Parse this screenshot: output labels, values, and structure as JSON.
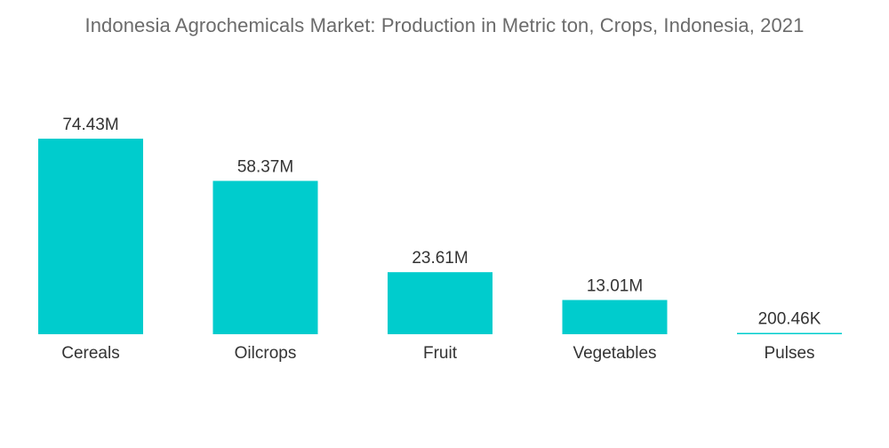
{
  "chart_data": {
    "type": "bar",
    "title": "Indonesia Agrochemicals Market: Production in Metric ton, Crops, Indonesia, 2021",
    "categories": [
      "Cereals",
      "Oilcrops",
      "Fruit",
      "Vegetables",
      "Pulses"
    ],
    "values": [
      74430000,
      58370000,
      23610000,
      13010000,
      200460
    ],
    "data_labels": [
      "74.43M",
      "58.37M",
      "23.61M",
      "13.01M",
      "200.46K"
    ],
    "xlabel": "",
    "ylabel": "",
    "ylim": [
      0,
      74430000
    ],
    "grid": false,
    "legend": "none",
    "colors": {
      "bar": "#00cccd",
      "text": "#333333",
      "title": "#6b6b6b"
    }
  }
}
